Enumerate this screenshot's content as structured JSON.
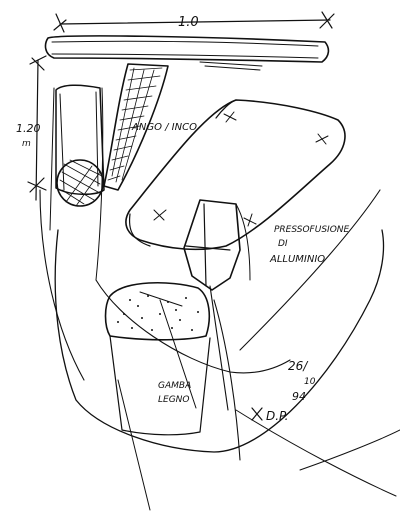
{
  "sketch": {
    "ink_color": "#111111",
    "paper_color": "#ffffff",
    "dimensions": {
      "width_label": "1.0",
      "height_label": "1.20",
      "height_unit": "m"
    },
    "annotations": {
      "joint": "ANGO / INCO",
      "joint_line2": "",
      "pressofusione_1": "PRESSOFUSIONE",
      "pressofusione_2": "DI",
      "pressofusione_3": "ALLUMINIO",
      "gamba_1": "GAMBA",
      "gamba_2": "LEGNO",
      "date_1": "26/",
      "date_2": "10",
      "date_3": "94",
      "signature": "D.P."
    }
  }
}
